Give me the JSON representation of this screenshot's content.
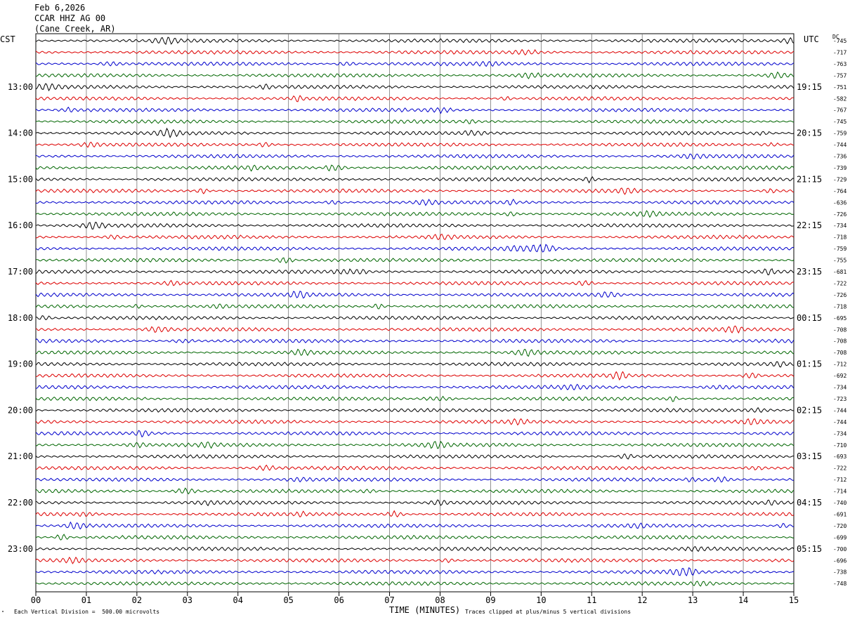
{
  "header": {
    "date": "Feb 6,2026",
    "station": "CCAR HHZ AG 00",
    "location": "(Cane Creek, AR)"
  },
  "left_zone": "CST",
  "right_zone": "UTC",
  "dc_label": "DC",
  "footer": {
    "scale": "Each Vertical Division =  500.00 microvolts",
    "clip": "Traces clipped at plus/minus 5 vertical divisions",
    "mark": "\""
  },
  "chart_data": {
    "type": "line",
    "title": "",
    "xlabel": "TIME (MINUTES)",
    "ylabel": "",
    "xlim": [
      0,
      15
    ],
    "x_ticks": [
      "00",
      "01",
      "02",
      "03",
      "04",
      "05",
      "06",
      "07",
      "08",
      "09",
      "10",
      "11",
      "12",
      "13",
      "14",
      "15"
    ],
    "trace_colors": [
      "#000000",
      "#dd0000",
      "#0000cc",
      "#006600"
    ],
    "rows_per_hour": 4,
    "left_hour_labels": [
      "13:00",
      "14:00",
      "15:00",
      "16:00",
      "17:00",
      "18:00",
      "19:00",
      "20:00",
      "21:00",
      "22:00",
      "23:00"
    ],
    "right_hour_labels": [
      "19:15",
      "20:15",
      "21:15",
      "22:15",
      "23:15",
      "00:15",
      "01:15",
      "02:15",
      "03:15",
      "04:15",
      "05:15"
    ],
    "hour_label_first_row": 4,
    "dc_offsets": [
      -745,
      -717,
      -763,
      -757,
      -751,
      -582,
      -767,
      -745,
      -759,
      -744,
      -736,
      -739,
      -729,
      -764,
      -636,
      -726,
      -734,
      -718,
      -759,
      -755,
      -681,
      -722,
      -726,
      -718,
      -695,
      -708,
      -708,
      -708,
      -712,
      -692,
      -734,
      -723,
      -744,
      -744,
      -734,
      -710,
      -693,
      -722,
      -712,
      -714,
      -740,
      -691,
      -720,
      -699,
      -700,
      -696,
      -738,
      -748
    ]
  }
}
